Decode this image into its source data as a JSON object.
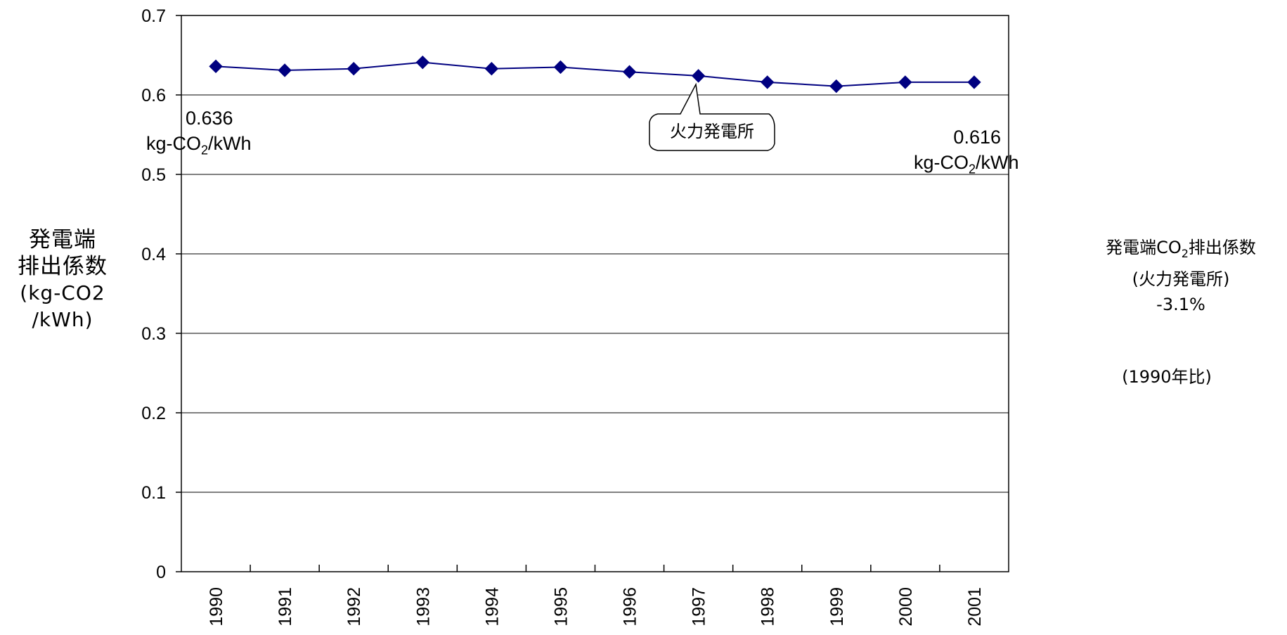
{
  "chart_data": {
    "type": "line",
    "categories": [
      "1990",
      "1991",
      "1992",
      "1993",
      "1994",
      "1995",
      "1996",
      "1997",
      "1998",
      "1999",
      "2000",
      "2001"
    ],
    "series": [
      {
        "name": "火力発電所",
        "values": [
          0.636,
          0.631,
          0.633,
          0.641,
          0.633,
          0.635,
          0.629,
          0.624,
          0.616,
          0.611,
          0.616,
          0.616
        ]
      }
    ],
    "ylim": [
      0,
      0.7
    ],
    "yticks": [
      "0",
      "0.1",
      "0.2",
      "0.3",
      "0.4",
      "0.5",
      "0.6",
      "0.7"
    ],
    "ylabel": {
      "line1": "発電端",
      "line2": "排出係数",
      "line3": "(kg-CO2",
      "line4": "/kWh)"
    },
    "grid": true,
    "marker_color": "#000080",
    "line_color": "#000080",
    "callout_label": "火力発電所",
    "annotations": {
      "start_value": "0.636",
      "start_unit_pre": "kg-CO",
      "start_unit_sub": "2",
      "start_unit_post": "/kWh",
      "end_value": "0.616",
      "end_unit_pre": "kg-CO",
      "end_unit_sub": "2",
      "end_unit_post": "/kWh"
    }
  },
  "side_note": {
    "title_pre": "発電端CO",
    "title_sub": "2",
    "title_post": "排出係数",
    "subtitle": "(火力発電所)",
    "change": "-3.1%",
    "basis": "(1990年比)"
  }
}
